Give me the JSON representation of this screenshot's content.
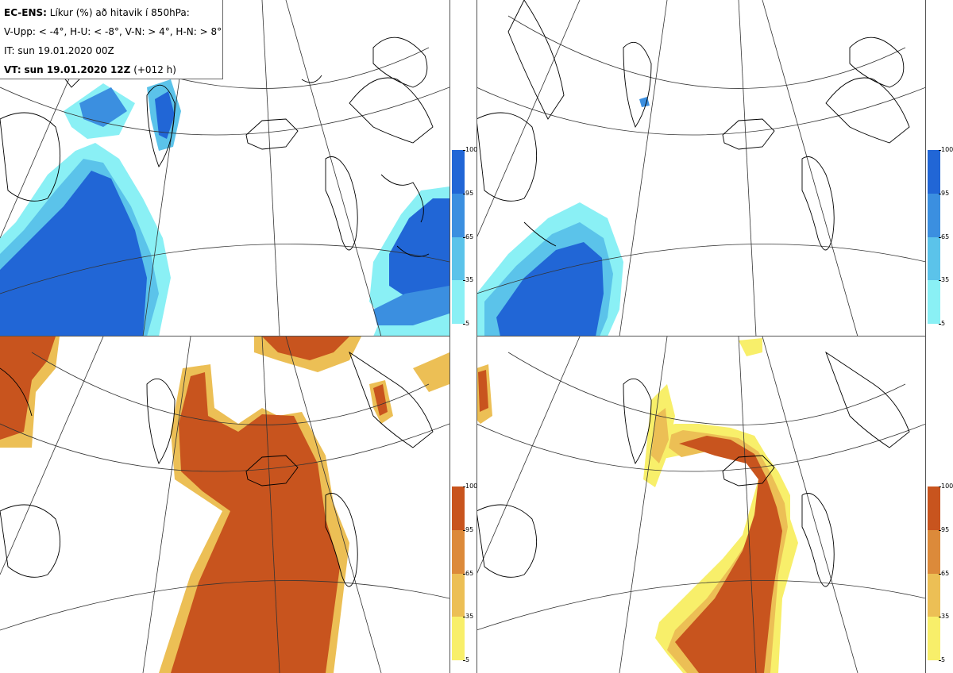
{
  "legend": {
    "model_label": "EC-ENS:",
    "title_rest": "Líkur (%) að hitavik í 850hPa:",
    "thresholds": "V-Upp: < -4°, H-U: < -8°, V-N: > 4°, H-N: > 8°",
    "init_time": "IT: sun 19.01.2020 00Z",
    "valid_label": "VT:",
    "valid_time": "sun 19.01.2020 12Z",
    "lead_time": "(+012 h)"
  },
  "panels": [
    {
      "id": "V-Upp",
      "description": "prob anomaly < -4°"
    },
    {
      "id": "H-U",
      "description": "prob anomaly < -8°"
    },
    {
      "id": "V-N",
      "description": "prob anomaly > 4°"
    },
    {
      "id": "H-N",
      "description": "prob anomaly > 8°"
    }
  ],
  "colorbars": {
    "ticks": [
      "100",
      "95",
      "65",
      "35",
      "5"
    ],
    "cold_colors": [
      "#2166d6",
      "#3b8fe0",
      "#5bc3ea",
      "#8af0f5",
      "#c8fbfd"
    ],
    "warm_colors": [
      "#c8541e",
      "#dc8a3a",
      "#ecbf55",
      "#f8ef6a",
      "#fdfcb0"
    ]
  }
}
